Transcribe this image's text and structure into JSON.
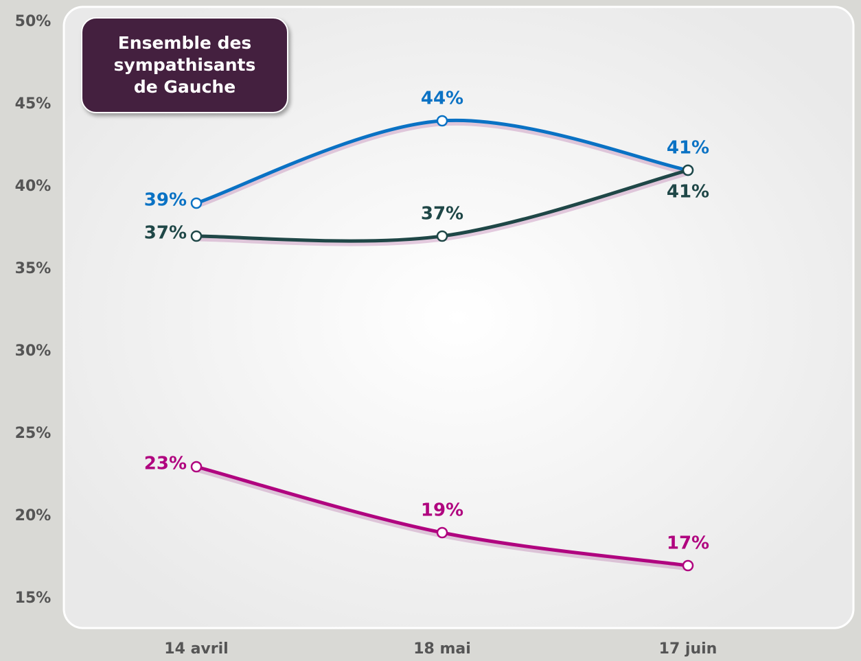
{
  "chart_data": {
    "type": "line",
    "title": "Ensemble des sympathisants de Gauche",
    "categories": [
      "14 avril",
      "18 mai",
      "17 juin"
    ],
    "series": [
      {
        "color": "#0a72c4",
        "values": [
          39,
          44,
          41
        ],
        "value_labels": [
          "39%",
          "44%",
          "41%"
        ]
      },
      {
        "color": "#1f4747",
        "values": [
          37,
          37,
          41
        ],
        "value_labels": [
          "37%",
          "37%",
          "41%"
        ]
      },
      {
        "color": "#b0047f",
        "values": [
          23,
          19,
          17
        ],
        "value_labels": [
          "23%",
          "19%",
          "17%"
        ]
      }
    ],
    "ylim": [
      15,
      50
    ],
    "yticks": [
      {
        "value": 15,
        "label": "15%"
      },
      {
        "value": 20,
        "label": "20%"
      },
      {
        "value": 25,
        "label": "25%"
      },
      {
        "value": 30,
        "label": "30%"
      },
      {
        "value": 35,
        "label": "35%"
      },
      {
        "value": 40,
        "label": "40%"
      },
      {
        "value": 45,
        "label": "45%"
      },
      {
        "value": 50,
        "label": "50%"
      }
    ],
    "grid": false
  }
}
